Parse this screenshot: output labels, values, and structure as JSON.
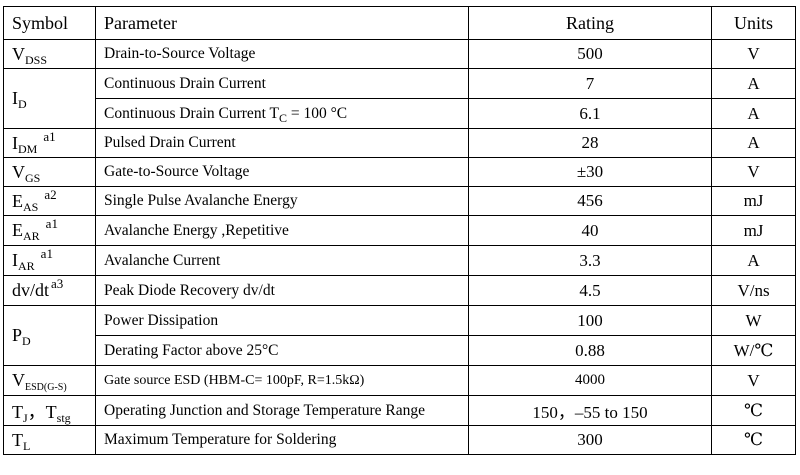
{
  "table": {
    "headers": {
      "symbol": "Symbol",
      "parameter": "Parameter",
      "rating": "Rating",
      "units": "Units"
    },
    "rows": [
      {
        "sym": "V",
        "sub": "DSS",
        "param": "Drain-to-Source Voltage",
        "rating": "500",
        "unit": "V"
      },
      {
        "sym": "I",
        "sub": "D",
        "param": "Continuous Drain Current",
        "rating": "7",
        "unit": "A"
      },
      {
        "param_pre": "Continuous Drain Current T",
        "param_sub": "C",
        "param_post": " = 100 °C",
        "rating": "6.1",
        "unit": "A"
      },
      {
        "sym": "I",
        "sub": "DM",
        "sup": "a1",
        "param": "Pulsed Drain Current",
        "rating": "28",
        "unit": "A"
      },
      {
        "sym": "V",
        "sub": "GS",
        "param": "Gate-to-Source Voltage",
        "rating": "±30",
        "unit": "V"
      },
      {
        "sym": "E",
        "sub": "AS",
        "sup": "a2",
        "param": "Single Pulse Avalanche Energy",
        "rating": "456",
        "unit": "mJ"
      },
      {
        "sym": "E",
        "sub": "AR",
        "sup": "a1",
        "param": "Avalanche Energy ,Repetitive",
        "rating": "40",
        "unit": "mJ"
      },
      {
        "sym": "I",
        "sub": "AR",
        "sup": "a1",
        "param": "Avalanche Current",
        "rating": "3.3",
        "unit": "A"
      },
      {
        "sym": "dv/dt",
        "sup": "a3",
        "param": "Peak Diode Recovery dv/dt",
        "rating": "4.5",
        "unit": "V/ns"
      },
      {
        "sym": "P",
        "sub": "D",
        "param": "Power Dissipation",
        "rating": "100",
        "unit": "W"
      },
      {
        "param": "Derating Factor above 25°C",
        "rating": "0.88",
        "unit": "W/℃"
      },
      {
        "sym": "V",
        "sub": "ESD(G-S)",
        "param": "Gate source ESD (HBM-C= 100pF, R=1.5kΩ)",
        "rating": "4000",
        "unit": "V"
      },
      {
        "sym": "T",
        "sub": "J",
        "sym2": "，T",
        "sub2": "stg",
        "param": "Operating Junction and Storage Temperature Range",
        "rating": "150，–55 to 150",
        "unit": "℃"
      },
      {
        "sym": "T",
        "sub": "L",
        "param": "Maximum Temperature for Soldering",
        "rating": "300",
        "unit": "℃"
      }
    ]
  }
}
